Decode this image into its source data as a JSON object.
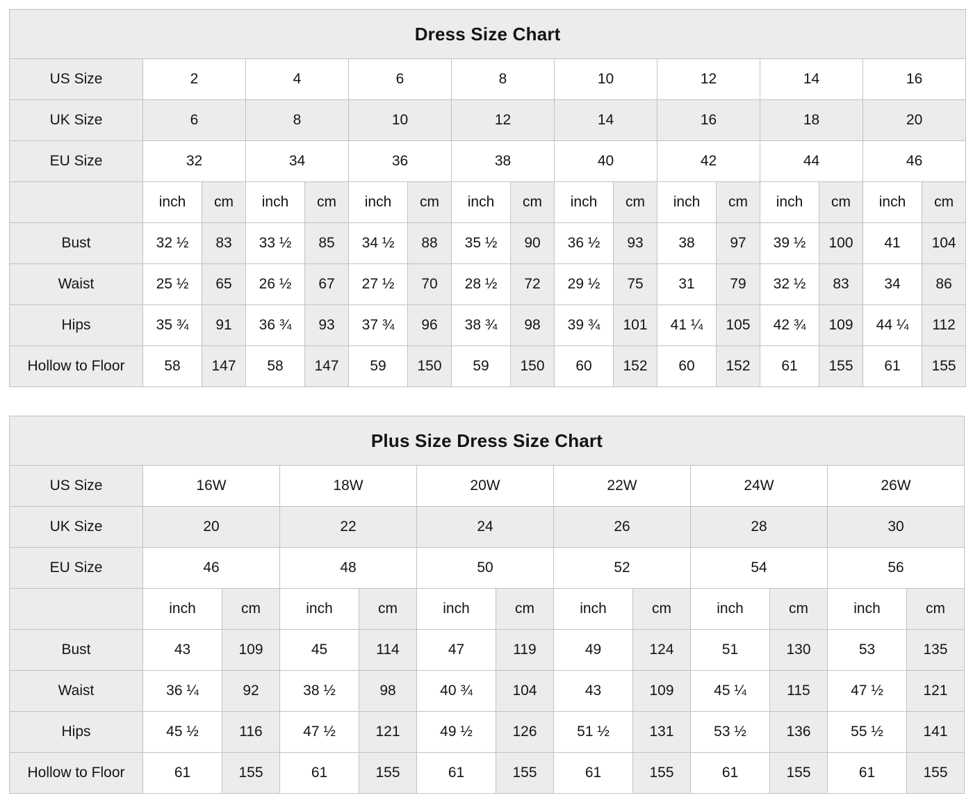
{
  "colors": {
    "shaded_cell_bg": "#ececec",
    "cell_bg": "#ffffff",
    "border": "#c2c2c2",
    "text": "#141414"
  },
  "charts": [
    {
      "title": "Dress Size Chart",
      "unit_labels": [
        "inch",
        "cm"
      ],
      "size_rows": [
        {
          "label": "US Size",
          "shaded": false,
          "values": [
            "2",
            "4",
            "6",
            "8",
            "10",
            "12",
            "14",
            "16"
          ]
        },
        {
          "label": "UK Size",
          "shaded": true,
          "values": [
            "6",
            "8",
            "10",
            "12",
            "14",
            "16",
            "18",
            "20"
          ]
        },
        {
          "label": "EU Size",
          "shaded": false,
          "values": [
            "32",
            "34",
            "36",
            "38",
            "40",
            "42",
            "44",
            "46"
          ]
        }
      ],
      "measurement_rows": [
        {
          "label": "Bust",
          "pairs": [
            [
              "32 ½",
              "83"
            ],
            [
              "33 ½",
              "85"
            ],
            [
              "34 ½",
              "88"
            ],
            [
              "35 ½",
              "90"
            ],
            [
              "36 ½",
              "93"
            ],
            [
              "38",
              "97"
            ],
            [
              "39 ½",
              "100"
            ],
            [
              "41",
              "104"
            ]
          ]
        },
        {
          "label": "Waist",
          "pairs": [
            [
              "25 ½",
              "65"
            ],
            [
              "26 ½",
              "67"
            ],
            [
              "27 ½",
              "70"
            ],
            [
              "28 ½",
              "72"
            ],
            [
              "29 ½",
              "75"
            ],
            [
              "31",
              "79"
            ],
            [
              "32 ½",
              "83"
            ],
            [
              "34",
              "86"
            ]
          ]
        },
        {
          "label": "Hips",
          "pairs": [
            [
              "35 ¾",
              "91"
            ],
            [
              "36 ¾",
              "93"
            ],
            [
              "37 ¾",
              "96"
            ],
            [
              "38 ¾",
              "98"
            ],
            [
              "39 ¾",
              "101"
            ],
            [
              "41 ¼",
              "105"
            ],
            [
              "42 ¾",
              "109"
            ],
            [
              "44 ¼",
              "112"
            ]
          ]
        },
        {
          "label": "Hollow to Floor",
          "pairs": [
            [
              "58",
              "147"
            ],
            [
              "58",
              "147"
            ],
            [
              "59",
              "150"
            ],
            [
              "59",
              "150"
            ],
            [
              "60",
              "152"
            ],
            [
              "60",
              "152"
            ],
            [
              "61",
              "155"
            ],
            [
              "61",
              "155"
            ]
          ]
        }
      ]
    },
    {
      "title": "Plus Size Dress Size Chart",
      "unit_labels": [
        "inch",
        "cm"
      ],
      "size_rows": [
        {
          "label": "US Size",
          "shaded": false,
          "values": [
            "16W",
            "18W",
            "20W",
            "22W",
            "24W",
            "26W"
          ]
        },
        {
          "label": "UK Size",
          "shaded": true,
          "values": [
            "20",
            "22",
            "24",
            "26",
            "28",
            "30"
          ]
        },
        {
          "label": "EU Size",
          "shaded": false,
          "values": [
            "46",
            "48",
            "50",
            "52",
            "54",
            "56"
          ]
        }
      ],
      "measurement_rows": [
        {
          "label": "Bust",
          "pairs": [
            [
              "43",
              "109"
            ],
            [
              "45",
              "114"
            ],
            [
              "47",
              "119"
            ],
            [
              "49",
              "124"
            ],
            [
              "51",
              "130"
            ],
            [
              "53",
              "135"
            ]
          ]
        },
        {
          "label": "Waist",
          "pairs": [
            [
              "36 ¼",
              "92"
            ],
            [
              "38 ½",
              "98"
            ],
            [
              "40 ¾",
              "104"
            ],
            [
              "43",
              "109"
            ],
            [
              "45 ¼",
              "115"
            ],
            [
              "47 ½",
              "121"
            ]
          ]
        },
        {
          "label": "Hips",
          "pairs": [
            [
              "45 ½",
              "116"
            ],
            [
              "47 ½",
              "121"
            ],
            [
              "49 ½",
              "126"
            ],
            [
              "51 ½",
              "131"
            ],
            [
              "53 ½",
              "136"
            ],
            [
              "55 ½",
              "141"
            ]
          ]
        },
        {
          "label": "Hollow to Floor",
          "pairs": [
            [
              "61",
              "155"
            ],
            [
              "61",
              "155"
            ],
            [
              "61",
              "155"
            ],
            [
              "61",
              "155"
            ],
            [
              "61",
              "155"
            ],
            [
              "61",
              "155"
            ]
          ]
        }
      ]
    }
  ]
}
